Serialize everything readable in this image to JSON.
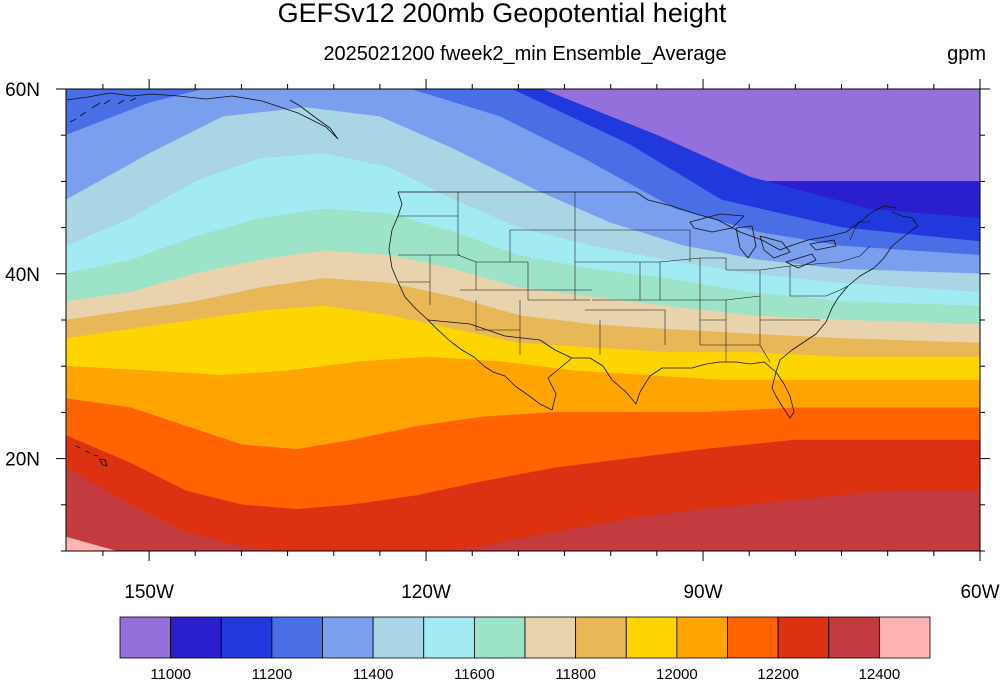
{
  "title": "GEFSv12 200mb Geopotential height",
  "subtitle": "2025021200 fweek2_min Ensemble_Average",
  "units": "gpm",
  "map": {
    "projection": "cylindrical-equidistant",
    "lon_range": [
      -159,
      -60
    ],
    "lat_range": [
      10,
      60
    ],
    "region": "North Pacific and contiguous United States",
    "outlines": [
      "coastlines",
      "US state borders"
    ],
    "lat_ticks": [
      {
        "lat": 60,
        "label": "60N"
      },
      {
        "lat": 40,
        "label": "40N"
      },
      {
        "lat": 20,
        "label": "20N"
      }
    ],
    "lon_ticks": [
      {
        "lon": -150,
        "label": "150W"
      },
      {
        "lon": -120,
        "label": "120W"
      },
      {
        "lon": -90,
        "label": "90W"
      },
      {
        "lon": -60,
        "label": "60W"
      }
    ]
  },
  "chart_data": {
    "type": "heatmap",
    "variable": "200mb geopotential height",
    "levels": [
      11000,
      11100,
      11200,
      11300,
      11400,
      11500,
      11600,
      11700,
      11800,
      11900,
      12000,
      12100,
      12200,
      12300,
      12400
    ],
    "colors": [
      "#9370DB",
      "#2B1ECC",
      "#2038DC",
      "#4A6EE6",
      "#7A9FEF",
      "#A9D5E5",
      "#A2EBF3",
      "#9CE3C8",
      "#E9D3AC",
      "#E8B758",
      "#FFD500",
      "#FFA400",
      "#FF6400",
      "#DC3212",
      "#C33A3F",
      "#FFB3B3"
    ],
    "contour_boundaries": [
      {
        "value": 11000,
        "lat_at_lon": [
          [
            -60,
            50
          ]
        ]
      },
      {
        "value": 11100,
        "lat_at_lon": [
          [
            -159,
            62
          ],
          [
            -110,
            61
          ],
          [
            -95,
            55
          ],
          [
            -85,
            50.5
          ],
          [
            -72,
            47
          ],
          [
            -60,
            46
          ]
        ]
      },
      {
        "value": 11200,
        "lat_at_lon": [
          [
            -159,
            64
          ],
          [
            -115,
            62
          ],
          [
            -98,
            54
          ],
          [
            -88,
            48
          ],
          [
            -75,
            45
          ],
          [
            -60,
            43.5
          ]
        ]
      },
      {
        "value": 11300,
        "lat_at_lon": [
          [
            -159,
            55
          ],
          [
            -150,
            58.5
          ],
          [
            -140,
            61
          ],
          [
            -125,
            61
          ],
          [
            -112,
            57
          ],
          [
            -103,
            52.5
          ],
          [
            -93,
            47
          ],
          [
            -84,
            44.5
          ],
          [
            -75,
            43
          ],
          [
            -60,
            42
          ]
        ]
      },
      {
        "value": 11400,
        "lat_at_lon": [
          [
            -159,
            48
          ],
          [
            -150,
            53
          ],
          [
            -142,
            57
          ],
          [
            -133,
            58
          ],
          [
            -125,
            57
          ],
          [
            -117,
            53.5
          ],
          [
            -108,
            49
          ],
          [
            -100,
            45.5
          ],
          [
            -92,
            43
          ],
          [
            -84,
            41.5
          ],
          [
            -75,
            40.5
          ],
          [
            -60,
            40
          ]
        ]
      },
      {
        "value": 11500,
        "lat_at_lon": [
          [
            -159,
            43
          ],
          [
            -152,
            46
          ],
          [
            -145,
            50
          ],
          [
            -138,
            52.5
          ],
          [
            -131,
            53
          ],
          [
            -124,
            51.5
          ],
          [
            -117,
            48
          ],
          [
            -110,
            45
          ],
          [
            -102,
            43
          ],
          [
            -94,
            41.5
          ],
          [
            -85,
            40
          ],
          [
            -75,
            39
          ],
          [
            -60,
            38
          ]
        ]
      },
      {
        "value": 11600,
        "lat_at_lon": [
          [
            -159,
            40
          ],
          [
            -152,
            41.5
          ],
          [
            -145,
            44
          ],
          [
            -138,
            46
          ],
          [
            -131,
            47
          ],
          [
            -124,
            46.5
          ],
          [
            -117,
            44.5
          ],
          [
            -110,
            42
          ],
          [
            -102,
            40.5
          ],
          [
            -94,
            39.5
          ],
          [
            -85,
            38
          ],
          [
            -75,
            37
          ],
          [
            -60,
            36.5
          ]
        ]
      },
      {
        "value": 11700,
        "lat_at_lon": [
          [
            -159,
            37
          ],
          [
            -152,
            38
          ],
          [
            -145,
            40
          ],
          [
            -138,
            41.5
          ],
          [
            -131,
            42.5
          ],
          [
            -124,
            42
          ],
          [
            -117,
            40.5
          ],
          [
            -110,
            38.5
          ],
          [
            -102,
            37.5
          ],
          [
            -94,
            36.5
          ],
          [
            -85,
            35.5
          ],
          [
            -75,
            35
          ],
          [
            -60,
            34.5
          ]
        ]
      },
      {
        "value": 11800,
        "lat_at_lon": [
          [
            -159,
            35
          ],
          [
            -152,
            36
          ],
          [
            -145,
            37
          ],
          [
            -138,
            38.5
          ],
          [
            -131,
            39.5
          ],
          [
            -124,
            39
          ],
          [
            -117,
            37.5
          ],
          [
            -110,
            35.5
          ],
          [
            -102,
            34.5
          ],
          [
            -94,
            34
          ],
          [
            -85,
            33.5
          ],
          [
            -75,
            33
          ],
          [
            -60,
            32.5
          ]
        ]
      },
      {
        "value": 11900,
        "lat_at_lon": [
          [
            -159,
            33
          ],
          [
            -152,
            34
          ],
          [
            -145,
            35
          ],
          [
            -138,
            36
          ],
          [
            -131,
            36.5
          ],
          [
            -124,
            35.5
          ],
          [
            -117,
            34
          ],
          [
            -110,
            32.5
          ],
          [
            -102,
            32
          ],
          [
            -94,
            31.5
          ],
          [
            -85,
            31.5
          ],
          [
            -75,
            31
          ],
          [
            -60,
            31
          ]
        ]
      },
      {
        "value": 12000,
        "lat_at_lon": [
          [
            -159,
            30
          ],
          [
            -150,
            29.5
          ],
          [
            -142,
            29
          ],
          [
            -135,
            29.5
          ],
          [
            -127,
            30.5
          ],
          [
            -120,
            31
          ],
          [
            -112,
            30.5
          ],
          [
            -104,
            29.5
          ],
          [
            -96,
            29
          ],
          [
            -88,
            28.5
          ],
          [
            -78,
            28.5
          ],
          [
            -68,
            28.5
          ],
          [
            -60,
            28.5
          ]
        ]
      },
      {
        "value": 12100,
        "lat_at_lon": [
          [
            -159,
            26.5
          ],
          [
            -152,
            25.5
          ],
          [
            -146,
            23.5
          ],
          [
            -140,
            21.5
          ],
          [
            -134,
            21
          ],
          [
            -128,
            22
          ],
          [
            -121,
            23.5
          ],
          [
            -114,
            24.5
          ],
          [
            -106,
            25
          ],
          [
            -98,
            25
          ],
          [
            -90,
            25
          ],
          [
            -80,
            25.5
          ],
          [
            -70,
            25.5
          ],
          [
            -60,
            25.5
          ]
        ]
      },
      {
        "value": 12200,
        "lat_at_lon": [
          [
            -159,
            22.5
          ],
          [
            -152,
            19.5
          ],
          [
            -146,
            16.5
          ],
          [
            -140,
            15
          ],
          [
            -134,
            14.5
          ],
          [
            -128,
            15
          ],
          [
            -121,
            16
          ],
          [
            -114,
            17.5
          ],
          [
            -106,
            19
          ],
          [
            -98,
            20
          ],
          [
            -90,
            21
          ],
          [
            -80,
            22
          ],
          [
            -70,
            22
          ],
          [
            -60,
            22
          ]
        ]
      },
      {
        "value": 12300,
        "lat_at_lon": [
          [
            -159,
            19
          ],
          [
            -152,
            15
          ],
          [
            -146,
            12
          ],
          [
            -140,
            10.5
          ],
          [
            -132,
            9.5
          ],
          [
            -121,
            9.5
          ],
          [
            -114,
            10.5
          ],
          [
            -106,
            12
          ],
          [
            -98,
            13.5
          ],
          [
            -90,
            14.5
          ],
          [
            -80,
            15.5
          ],
          [
            -70,
            16.5
          ],
          [
            -60,
            16.5
          ]
        ]
      },
      {
        "value": 12400,
        "lat_at_lon": [
          [
            -159,
            11.5
          ],
          [
            -150,
            9
          ]
        ]
      }
    ],
    "colorbar": {
      "labels": [
        "11000",
        "11200",
        "11400",
        "11600",
        "11800",
        "12000",
        "12200",
        "12400"
      ],
      "label_at_boundary": [
        1,
        3,
        5,
        7,
        9,
        11,
        13,
        15
      ]
    }
  }
}
